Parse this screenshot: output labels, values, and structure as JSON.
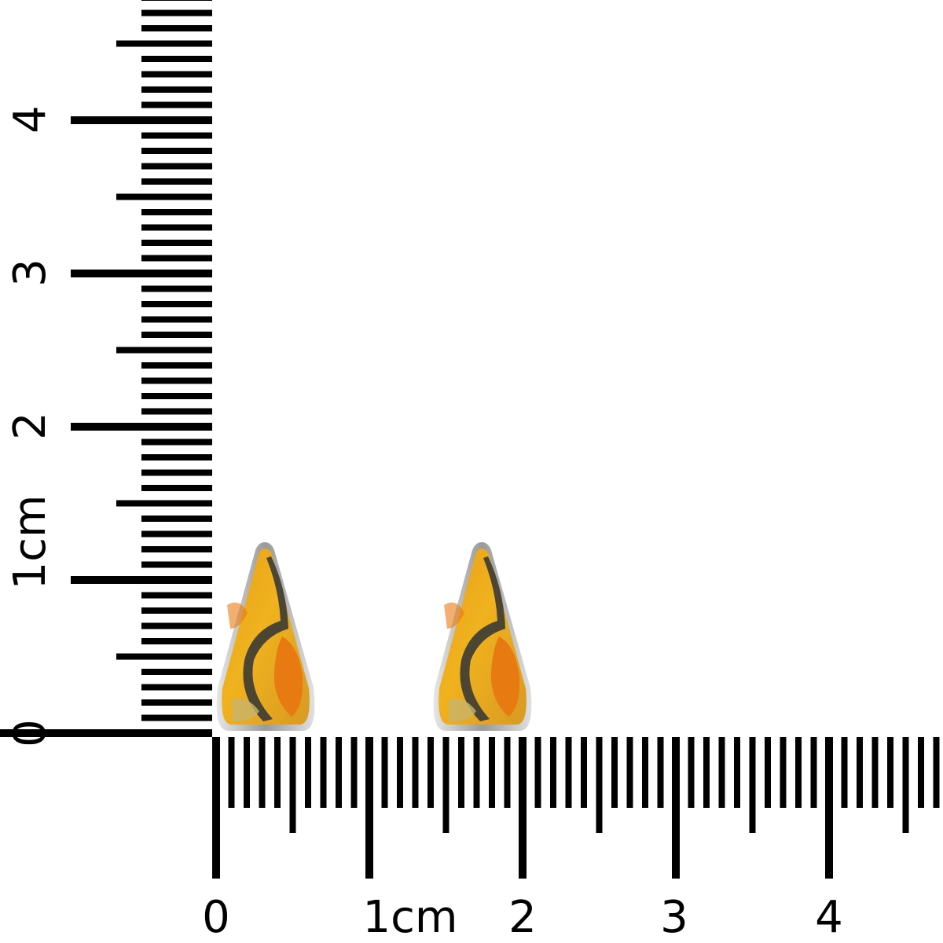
{
  "vertical_ruler": {
    "labels": [
      "0",
      "1cm",
      "2",
      "3",
      "4"
    ]
  },
  "horizontal_ruler": {
    "labels": [
      "0",
      "1cm",
      "2",
      "3",
      "4"
    ]
  },
  "product": {
    "name": "bumblebee-jasper-triangle-stud-earrings",
    "count": 2,
    "stone_colors": [
      "#f2a516",
      "#e87a12",
      "#3a3a34",
      "#c9b46a"
    ],
    "bezel_color": "#c8c8c8"
  }
}
